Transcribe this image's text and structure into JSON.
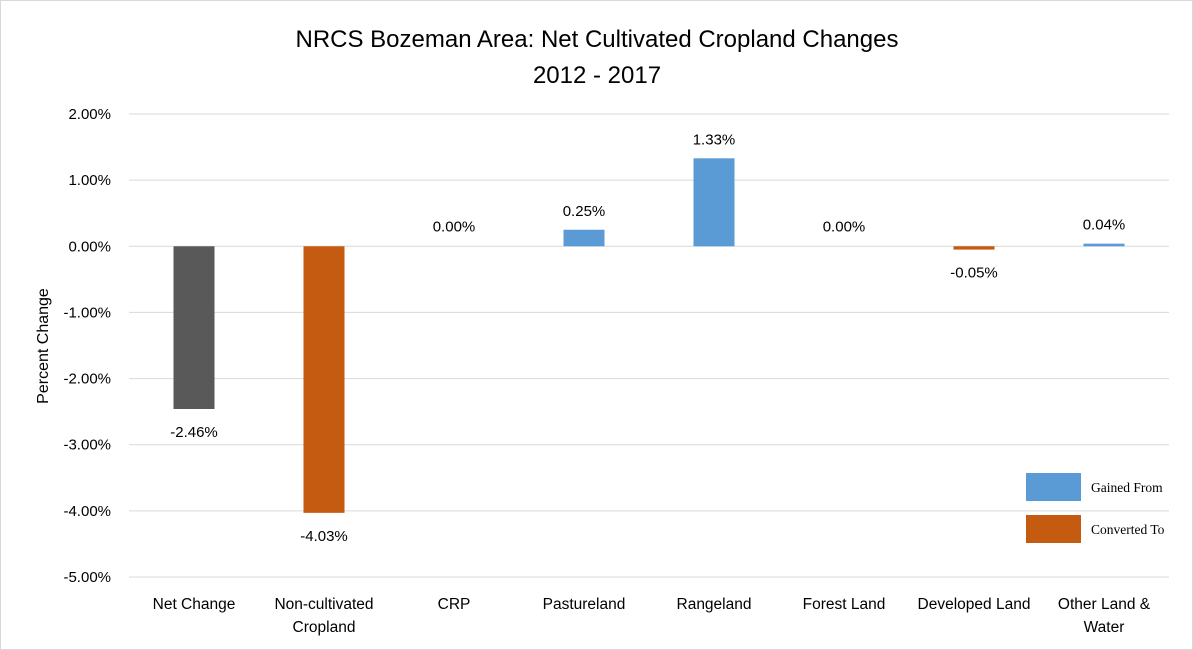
{
  "chart_data": {
    "type": "bar",
    "title": "NRCS Bozeman Area: Net Cultivated Cropland Changes",
    "subtitle": "2012 - 2017",
    "ylabel": "Percent Change",
    "xlabel": "",
    "ylim": [
      -5,
      2
    ],
    "yticks": [
      2,
      1,
      0,
      -1,
      -2,
      -3,
      -4,
      -5
    ],
    "ytick_labels": [
      "2.00%",
      "1.00%",
      "0.00%",
      "-1.00%",
      "-2.00%",
      "-3.00%",
      "-4.00%",
      "-5.00%"
    ],
    "grid": true,
    "legend_position": "bottom-right",
    "categories": [
      [
        "Net Change"
      ],
      [
        "Non-cultivated",
        "Cropland"
      ],
      [
        "CRP"
      ],
      [
        "Pastureland"
      ],
      [
        "Rangeland"
      ],
      [
        "Forest Land"
      ],
      [
        "Developed Land"
      ],
      [
        "Other Land &",
        "Water"
      ]
    ],
    "values": [
      -2.46,
      -4.03,
      0.0,
      0.25,
      1.33,
      0.0,
      -0.05,
      0.04
    ],
    "data_labels": [
      "-2.46%",
      "-4.03%",
      "0.00%",
      "0.25%",
      "1.33%",
      "0.00%",
      "-0.05%",
      "0.04%"
    ],
    "bar_groups": [
      "net",
      "converted",
      "gained",
      "gained",
      "gained",
      "gained",
      "converted",
      "gained"
    ],
    "colors": {
      "net": "#595959",
      "gained": "#5b9bd5",
      "converted": "#c55a11"
    },
    "legend": [
      {
        "label": "Gained From",
        "group": "gained"
      },
      {
        "label": "Converted To",
        "group": "converted"
      }
    ]
  }
}
